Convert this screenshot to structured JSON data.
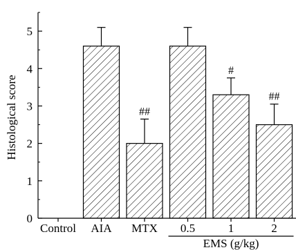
{
  "chart_data": {
    "type": "bar",
    "categories": [
      "Control",
      "AIA",
      "MTX",
      "0.5",
      "1",
      "2"
    ],
    "values": [
      0,
      4.6,
      2.0,
      4.6,
      3.3,
      2.5
    ],
    "errors": [
      0,
      0.5,
      0.65,
      0.5,
      0.45,
      0.55
    ],
    "annotations": [
      "",
      "",
      "##",
      "",
      "#",
      "##"
    ],
    "ylabel": "Histological score",
    "xlabel": "",
    "ylim": [
      0,
      5.5
    ],
    "yticks": [
      "0",
      "1",
      "2",
      "3",
      "4",
      "5"
    ],
    "group": {
      "label": "EMS (g/kg)",
      "categories": [
        "0.5",
        "1",
        "2"
      ]
    },
    "bar_fill": "hatched",
    "colors": {
      "stroke": "#000000",
      "hatch": "#000000",
      "background": "#ffffff"
    }
  }
}
